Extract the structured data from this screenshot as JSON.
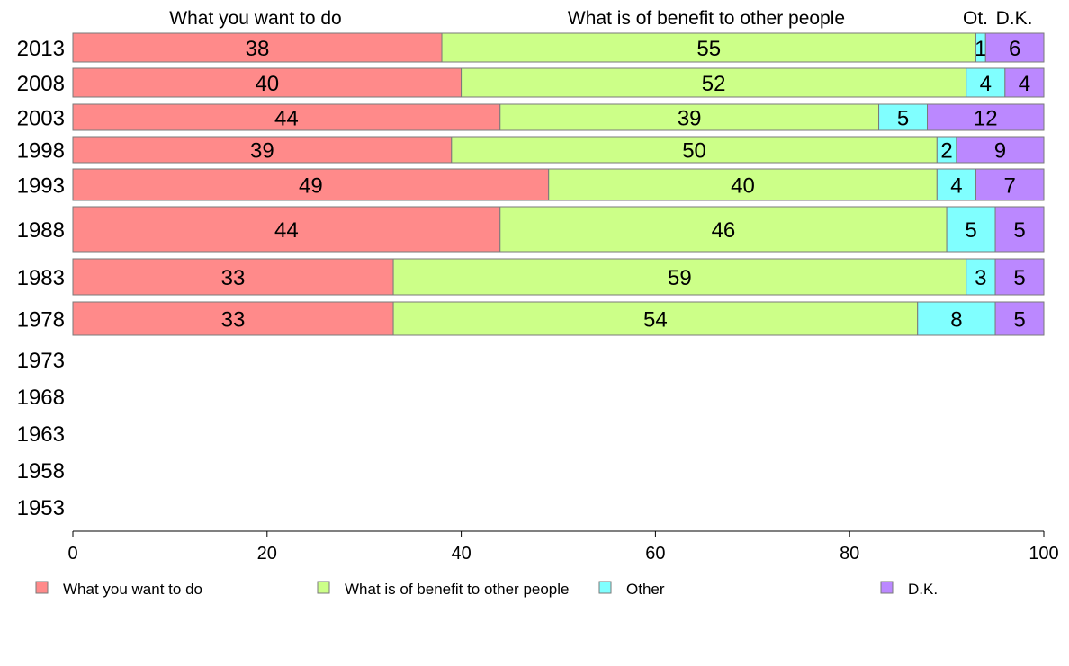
{
  "chart_data": {
    "type": "bar",
    "orientation": "horizontal",
    "stacked": true,
    "categories": [
      "2013",
      "2008",
      "2003",
      "1998",
      "1993",
      "1988",
      "1983",
      "1978",
      "1973",
      "1968",
      "1963",
      "1958",
      "1953"
    ],
    "series": [
      {
        "name": "What you want to do",
        "color": "#ff8a8a",
        "values": [
          38,
          40,
          44,
          39,
          49,
          44,
          33,
          33,
          null,
          null,
          null,
          null,
          null
        ]
      },
      {
        "name": "What is of benefit to other people",
        "color": "#ccff88",
        "values": [
          55,
          52,
          39,
          50,
          40,
          46,
          59,
          54,
          null,
          null,
          null,
          null,
          null
        ]
      },
      {
        "name": "Other",
        "color": "#80ffff",
        "values": [
          1,
          4,
          5,
          2,
          4,
          5,
          3,
          8,
          null,
          null,
          null,
          null,
          null
        ]
      },
      {
        "name": "D.K.",
        "color": "#bb88ff",
        "values": [
          6,
          4,
          12,
          9,
          7,
          5,
          5,
          5,
          null,
          null,
          null,
          null,
          null
        ]
      }
    ],
    "top_labels": [
      "What you want to do",
      "What is of benefit to other people",
      "Ot.",
      "D.K."
    ],
    "xlim": [
      0,
      100
    ],
    "xticks": [
      0,
      20,
      40,
      60,
      80,
      100
    ],
    "legend_position": "bottom",
    "grid": false
  }
}
